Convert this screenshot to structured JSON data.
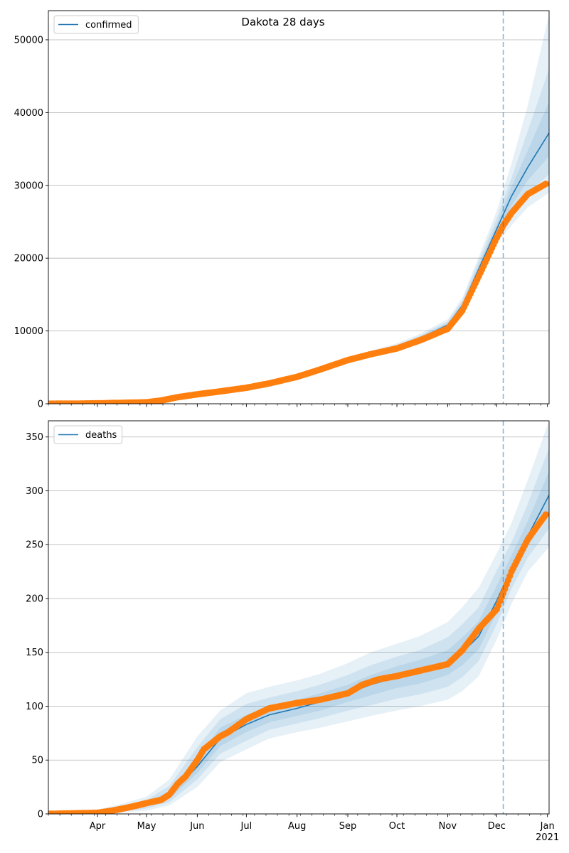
{
  "figure": {
    "title": "Dakota 28 days"
  },
  "colors": {
    "model": "#1f77b4",
    "observed": "#ff7f0e",
    "band": "#1f77b4",
    "grid": "#b0b0b0"
  },
  "x_axis": {
    "ticks": [
      {
        "date": "2020-04-01",
        "label": "Apr"
      },
      {
        "date": "2020-05-01",
        "label": "May"
      },
      {
        "date": "2020-06-01",
        "label": "Jun"
      },
      {
        "date": "2020-07-01",
        "label": "Jul"
      },
      {
        "date": "2020-08-01",
        "label": "Aug"
      },
      {
        "date": "2020-09-01",
        "label": "Sep"
      },
      {
        "date": "2020-10-01",
        "label": "Oct"
      },
      {
        "date": "2020-11-01",
        "label": "Nov"
      },
      {
        "date": "2020-12-01",
        "label": "Dec"
      },
      {
        "date": "2021-01-01",
        "label": "Jan",
        "sublabel": "2021"
      }
    ]
  },
  "chart_data": [
    {
      "type": "line",
      "legend": "confirmed",
      "legend_position": "top-left",
      "grid": "y",
      "xlim": [
        "2020-03-02",
        "2021-01-02"
      ],
      "ylim": [
        0,
        54000
      ],
      "yticks": [
        0,
        10000,
        20000,
        30000,
        40000,
        50000
      ],
      "vline": "2020-12-05",
      "observed_end": "2020-12-31",
      "model": {
        "x": [
          "2020-03-02",
          "2020-04-01",
          "2020-05-01",
          "2020-05-15",
          "2020-06-01",
          "2020-07-01",
          "2020-08-01",
          "2020-09-01",
          "2020-10-01",
          "2020-10-15",
          "2020-11-01",
          "2020-11-10",
          "2020-11-20",
          "2020-12-01",
          "2020-12-10",
          "2020-12-20",
          "2021-01-02"
        ],
        "y": [
          0,
          30,
          150,
          500,
          1300,
          2200,
          3700,
          6000,
          7800,
          9000,
          10800,
          13500,
          18500,
          24000,
          28500,
          32500,
          37200
        ],
        "bands": [
          {
            "lo": [
              0,
              20,
              120,
              420,
              1150,
              2000,
              3400,
              5600,
              7300,
              8400,
              10100,
              12500,
              17000,
              22000,
              24500,
              27000,
              29000
            ],
            "hi": [
              0,
              40,
              180,
              600,
              1450,
              2400,
              4000,
              6400,
              8300,
              9600,
              11600,
              14600,
              20200,
              26500,
              33000,
              41000,
              53500
            ]
          },
          {
            "lo": [
              0,
              23,
              130,
              450,
              1200,
              2070,
              3500,
              5750,
              7500,
              8650,
              10400,
              12900,
              17600,
              22800,
              26000,
              29000,
              31500
            ],
            "hi": [
              0,
              37,
              170,
              560,
              1400,
              2330,
              3900,
              6250,
              8100,
              9350,
              11300,
              14200,
              19600,
              25500,
              31000,
              37500,
              46000
            ]
          },
          {
            "lo": [
              0,
              26,
              140,
              475,
              1250,
              2130,
              3600,
              5870,
              7650,
              8800,
              10600,
              13200,
              18000,
              23400,
              27200,
              30700,
              34000
            ],
            "hi": [
              0,
              34,
              160,
              530,
              1350,
              2270,
              3800,
              6130,
              7950,
              9200,
              11050,
              13850,
              19000,
              24700,
              29800,
              34800,
              41500
            ]
          }
        ]
      },
      "observed": {
        "x": [
          "2020-03-02",
          "2020-03-20",
          "2020-04-01",
          "2020-04-15",
          "2020-05-01",
          "2020-05-10",
          "2020-05-20",
          "2020-06-01",
          "2020-06-15",
          "2020-07-01",
          "2020-07-15",
          "2020-08-01",
          "2020-08-15",
          "2020-09-01",
          "2020-09-15",
          "2020-10-01",
          "2020-10-15",
          "2020-11-01",
          "2020-11-10",
          "2020-11-20",
          "2020-12-01",
          "2020-12-05",
          "2020-12-10",
          "2020-12-20",
          "2020-12-31"
        ],
        "y": [
          0,
          20,
          60,
          120,
          200,
          450,
          900,
          1300,
          1700,
          2200,
          2800,
          3700,
          4700,
          6000,
          6800,
          7600,
          8700,
          10300,
          12800,
          17500,
          22800,
          24500,
          26200,
          28800,
          30200
        ]
      }
    },
    {
      "type": "line",
      "legend": "deaths",
      "legend_position": "top-left",
      "grid": "y",
      "xlim": [
        "2020-03-02",
        "2021-01-02"
      ],
      "ylim": [
        0,
        365
      ],
      "yticks": [
        0,
        50,
        100,
        150,
        200,
        250,
        300,
        350
      ],
      "vline": "2020-12-05",
      "observed_end": "2020-12-31",
      "model": {
        "x": [
          "2020-03-02",
          "2020-04-01",
          "2020-04-15",
          "2020-05-01",
          "2020-05-15",
          "2020-06-01",
          "2020-06-15",
          "2020-07-01",
          "2020-07-15",
          "2020-08-01",
          "2020-08-15",
          "2020-09-01",
          "2020-09-15",
          "2020-10-01",
          "2020-10-15",
          "2020-11-01",
          "2020-11-10",
          "2020-11-20",
          "2020-12-01",
          "2020-12-10",
          "2020-12-20",
          "2021-01-02"
        ],
        "y": [
          0,
          1,
          4,
          9,
          17,
          44,
          70,
          83,
          92,
          98,
          104,
          112,
          120,
          127,
          132,
          140,
          150,
          165,
          198,
          228,
          258,
          296
        ],
        "bands": [
          {
            "lo": [
              0,
              0,
              1,
              3,
              8,
              25,
              48,
              60,
              70,
              76,
              80,
              86,
              91,
              96,
              100,
              106,
              114,
              128,
              162,
              195,
              225,
              248
            ],
            "hi": [
              0,
              4,
              9,
              16,
              32,
              72,
              96,
              112,
              118,
              124,
              130,
              140,
              150,
              158,
              165,
              178,
              192,
              210,
              242,
              270,
              310,
              365
            ]
          },
          {
            "lo": [
              0,
              0,
              2,
              5,
              11,
              32,
              56,
              68,
              78,
              84,
              89,
              96,
              101,
              107,
              111,
              118,
              127,
              142,
              176,
              209,
              238,
              265
            ],
            "hi": [
              0,
              3,
              7,
              13,
              26,
              62,
              88,
              102,
              108,
              114,
              120,
              129,
              138,
              146,
              152,
              164,
              176,
              192,
              226,
              252,
              288,
              340
            ]
          },
          {
            "lo": [
              0,
              0,
              3,
              7,
              14,
              38,
              63,
              76,
              85,
              91,
              96,
              104,
              110,
              117,
              121,
              129,
              138,
              153,
              187,
              218,
              248,
              280
            ],
            "hi": [
              0,
              2,
              5,
              11,
              21,
              52,
              80,
              92,
              100,
              106,
              112,
              120,
              129,
              137,
              143,
              152,
              164,
              179,
              212,
              240,
              272,
              318
            ]
          }
        ]
      },
      "observed": {
        "x": [
          "2020-03-02",
          "2020-04-01",
          "2020-04-10",
          "2020-04-20",
          "2020-05-01",
          "2020-05-10",
          "2020-05-15",
          "2020-05-20",
          "2020-05-25",
          "2020-06-01",
          "2020-06-05",
          "2020-06-10",
          "2020-06-15",
          "2020-06-20",
          "2020-07-01",
          "2020-07-15",
          "2020-08-01",
          "2020-08-15",
          "2020-09-01",
          "2020-09-10",
          "2020-09-20",
          "2020-10-01",
          "2020-10-15",
          "2020-11-01",
          "2020-11-10",
          "2020-11-20",
          "2020-12-01",
          "2020-12-05",
          "2020-12-10",
          "2020-12-20",
          "2020-12-31"
        ],
        "y": [
          0,
          1,
          3,
          6,
          10,
          13,
          18,
          28,
          35,
          50,
          60,
          66,
          72,
          76,
          88,
          98,
          103,
          106,
          112,
          120,
          125,
          128,
          133,
          139,
          152,
          172,
          190,
          205,
          225,
          255,
          278
        ]
      }
    }
  ]
}
